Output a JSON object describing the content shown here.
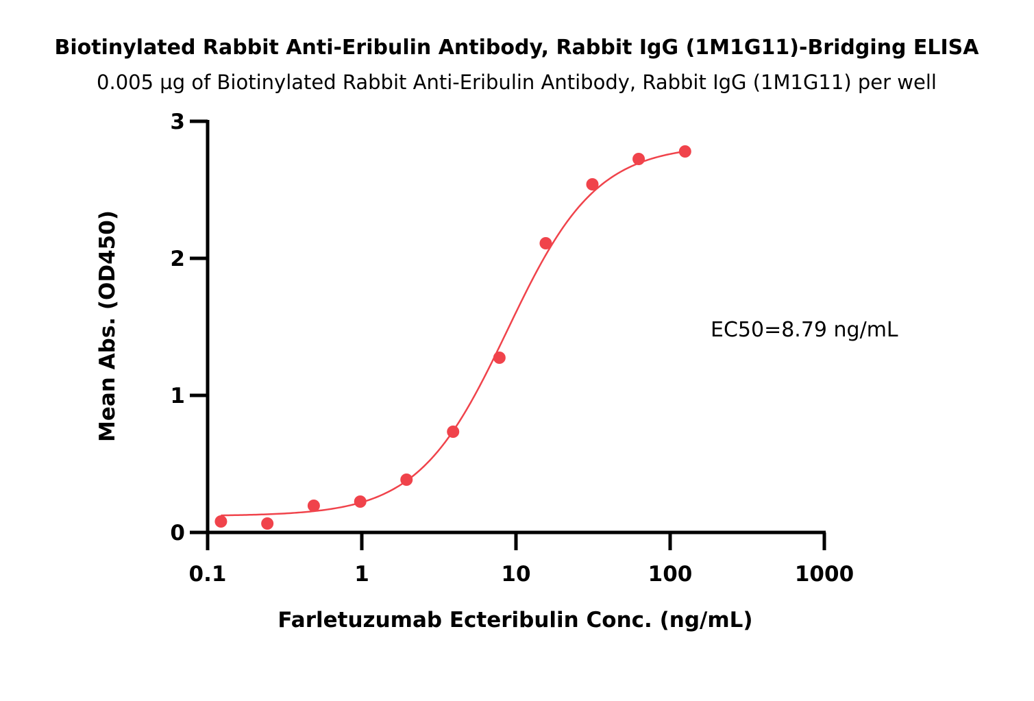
{
  "chart_data": {
    "type": "scatter",
    "title": "Biotinylated Rabbit Anti-Eribulin Antibody, Rabbit IgG (1M1G11)-Bridging ELISA",
    "subtitle": "0.005 µg of Biotinylated Rabbit Anti-Eribulin Antibody, Rabbit IgG (1M1G11) per well",
    "xlabel": "Farletuzumab Ecteribulin Conc. (ng/mL)",
    "ylabel": "Mean Abs. (OD450)",
    "xscale": "log",
    "xlim": [
      0.1,
      1000
    ],
    "ylim": [
      0,
      3
    ],
    "x_ticks": [
      0.1,
      1,
      10,
      100,
      1000
    ],
    "x_tick_labels": [
      "0.1",
      "1",
      "10",
      "100",
      "1000"
    ],
    "y_ticks": [
      0,
      1,
      2,
      3
    ],
    "y_tick_labels": [
      "0",
      "1",
      "2",
      "3"
    ],
    "grid": false,
    "color": "#f0434b",
    "series": [
      {
        "x": [
          0.122,
          0.244,
          0.488,
          0.977,
          1.95,
          3.91,
          7.81,
          15.6,
          31.3,
          62.5,
          125
        ],
        "y": [
          0.08,
          0.065,
          0.195,
          0.225,
          0.385,
          0.735,
          1.275,
          2.11,
          2.54,
          2.725,
          2.78
        ]
      }
    ],
    "fit": {
      "model": "4PL",
      "bottom": 0.12,
      "top": 2.83,
      "ec50": 8.79,
      "hill": 1.5
    },
    "annotations": [
      "EC50=8.79 ng/mL"
    ]
  }
}
